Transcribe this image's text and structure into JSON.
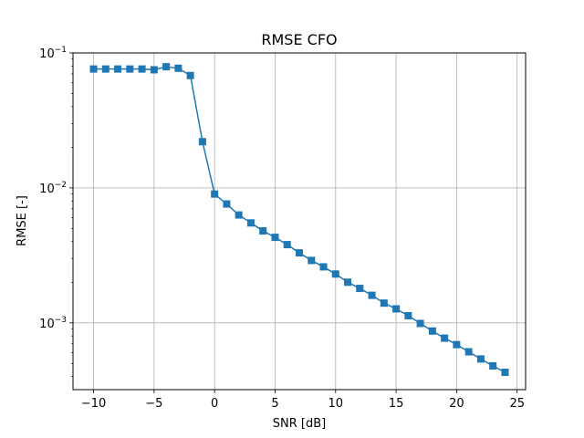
{
  "chart_data": {
    "type": "line",
    "title": "RMSE CFO",
    "xlabel": "SNR [dB]",
    "ylabel": "RMSE [-]",
    "xlim": [
      -11.7,
      25.7
    ],
    "ylim": [
      0.00032,
      0.1
    ],
    "yscale": "log",
    "grid": true,
    "x_ticks": [
      -10,
      -5,
      0,
      5,
      10,
      15,
      20,
      25
    ],
    "x_tick_labels": [
      "−10",
      "−5",
      "0",
      "5",
      "10",
      "15",
      "20",
      "25"
    ],
    "y_ticks": [
      0.001,
      0.01,
      0.1
    ],
    "y_tick_labels": [
      {
        "base": "10",
        "exp": "−3"
      },
      {
        "base": "10",
        "exp": "−2"
      },
      {
        "base": "10",
        "exp": "−1"
      }
    ],
    "series": [
      {
        "color": "#1f77b4",
        "marker": "square",
        "x": [
          -10,
          -9,
          -8,
          -7,
          -6,
          -5,
          -4,
          -3,
          -2,
          -1,
          0,
          1,
          2,
          3,
          4,
          5,
          6,
          7,
          8,
          9,
          10,
          11,
          12,
          13,
          14,
          15,
          16,
          17,
          18,
          19,
          20,
          21,
          22,
          23,
          24
        ],
        "values": [
          0.076,
          0.076,
          0.076,
          0.076,
          0.076,
          0.075,
          0.079,
          0.077,
          0.068,
          0.022,
          0.009,
          0.0076,
          0.0063,
          0.0055,
          0.0048,
          0.0043,
          0.0038,
          0.0033,
          0.0029,
          0.0026,
          0.0023,
          0.002,
          0.0018,
          0.0016,
          0.0014,
          0.00127,
          0.00113,
          0.00099,
          0.00087,
          0.00077,
          0.00069,
          0.00061,
          0.00054,
          0.00048,
          0.00043
        ]
      }
    ]
  }
}
